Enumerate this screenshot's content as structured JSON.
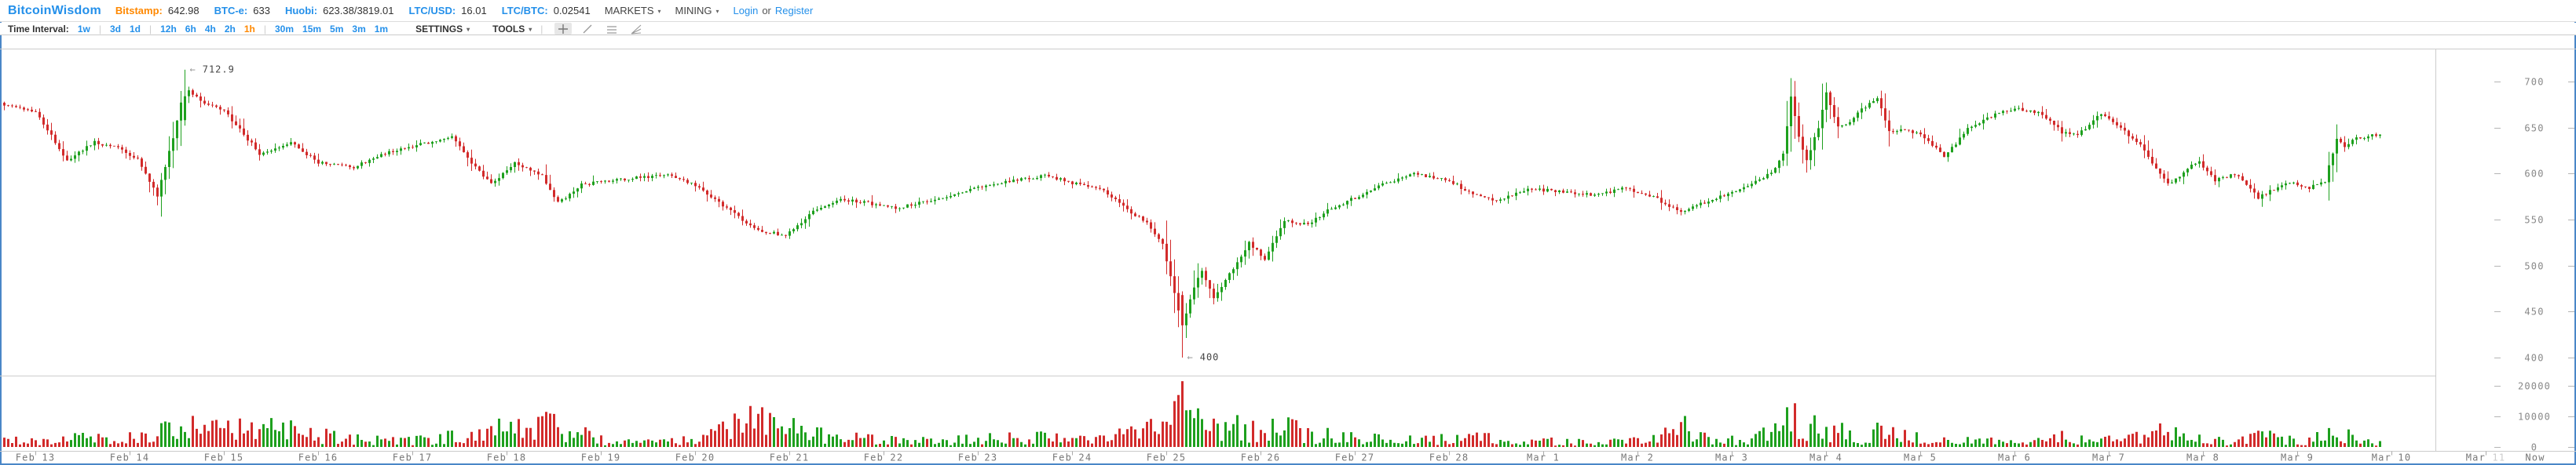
{
  "header": {
    "brand": "BitcoinWisdom",
    "tickers": [
      {
        "label": "Bitstamp:",
        "value": "642.98",
        "label_color": "#ff8800"
      },
      {
        "label": "BTC-e:",
        "value": "633",
        "label_color": "#2490ea"
      },
      {
        "label": "Huobi:",
        "value": "623.38/3819.01",
        "label_color": "#2490ea"
      },
      {
        "label": "LTC/USD:",
        "value": "16.01",
        "label_color": "#2490ea"
      },
      {
        "label": "LTC/BTC:",
        "value": "0.02541",
        "label_color": "#2490ea"
      }
    ],
    "menus": [
      {
        "label": "MARKETS"
      },
      {
        "label": "MINING"
      }
    ],
    "auth": {
      "login": "Login",
      "separator": "or",
      "register": "Register"
    }
  },
  "toolbar": {
    "time_interval_label": "Time Interval:",
    "groups": [
      [
        "1w"
      ],
      [
        "3d",
        "1d"
      ],
      [
        "12h",
        "6h",
        "4h",
        "2h",
        "1h"
      ],
      [
        "30m",
        "15m",
        "5m",
        "3m",
        "1m"
      ]
    ],
    "selected_interval": "1h",
    "settings_label": "SETTINGS",
    "tools_label": "TOOLS",
    "tool_icons": [
      "crosshair-icon",
      "trendline-icon",
      "horizontal-lines-icon",
      "fan-lines-icon"
    ],
    "separator_char": "|"
  },
  "icons": {
    "caret_down": "▾"
  },
  "theme": {
    "link_blue": "#2490ea",
    "highlight_orange": "#ff8800",
    "up_green": "#1ea01e",
    "down_red": "#d22b2b",
    "axis_gray": "#888",
    "border_blue": "#4a87c7"
  },
  "chart_data": {
    "type": "candlestick",
    "interval": "1h",
    "legend_position": "none",
    "grid": false,
    "price_axis": {
      "ticks": [
        700,
        650,
        600,
        550,
        500,
        450,
        400
      ],
      "range": [
        371,
        740
      ]
    },
    "volume_axis": {
      "ticks": [
        20000,
        10000,
        0
      ],
      "range": [
        0,
        22500
      ]
    },
    "x_axis": {
      "day_labels": [
        "Feb 13",
        "Feb 14",
        "Feb 15",
        "Feb 16",
        "Feb 17",
        "Feb 18",
        "Feb 19",
        "Feb 20",
        "Feb 21",
        "Feb 22",
        "Feb 23",
        "Feb 24",
        "Feb 25",
        "Feb 26",
        "Feb 27",
        "Feb 28",
        "Mar 1",
        "Mar 2",
        "Mar 3",
        "Mar 4",
        "Mar 5",
        "Mar 6",
        "Mar 7",
        "Mar 8",
        "Mar 9",
        "Mar 10"
      ],
      "future_label": {
        "month": "Mar",
        "day": "11"
      },
      "now_label": "Now"
    },
    "annotations": {
      "arrow": "←",
      "high": {
        "text": "712.9",
        "value": 712.9,
        "hour": 38
      },
      "low": {
        "text": "400",
        "value": 400,
        "hour": 292
      }
    },
    "colors": {
      "up": "#1ea01e",
      "down": "#d22b2b"
    },
    "hours": {
      "start": -8,
      "end": 597,
      "per_day": 24
    },
    "forced_candles": {
      "38": [
        658,
        684,
        712.9,
        652
      ],
      "292": [
        468,
        435,
        472,
        400
      ]
    },
    "forced_volumes": {
      "290": 15000,
      "291": 17000,
      "292": 21500,
      "293": 12000
    },
    "price_anchors": [
      [
        -8,
        675
      ],
      [
        0,
        668
      ],
      [
        8,
        614
      ],
      [
        15,
        634
      ],
      [
        21,
        628
      ],
      [
        26,
        615
      ],
      [
        31,
        576
      ],
      [
        35,
        640
      ],
      [
        38,
        695
      ],
      [
        42,
        678
      ],
      [
        48,
        668
      ],
      [
        57,
        622
      ],
      [
        65,
        634
      ],
      [
        72,
        612
      ],
      [
        81,
        607
      ],
      [
        91,
        625
      ],
      [
        100,
        634
      ],
      [
        106,
        639
      ],
      [
        112,
        606
      ],
      [
        116,
        589
      ],
      [
        122,
        611
      ],
      [
        129,
        597
      ],
      [
        133,
        568
      ],
      [
        139,
        588
      ],
      [
        149,
        594
      ],
      [
        161,
        598
      ],
      [
        168,
        588
      ],
      [
        175,
        565
      ],
      [
        183,
        540
      ],
      [
        191,
        532
      ],
      [
        198,
        558
      ],
      [
        205,
        572
      ],
      [
        212,
        568
      ],
      [
        219,
        562
      ],
      [
        229,
        572
      ],
      [
        239,
        585
      ],
      [
        249,
        592
      ],
      [
        257,
        598
      ],
      [
        264,
        590
      ],
      [
        271,
        585
      ],
      [
        278,
        560
      ],
      [
        283,
        548
      ],
      [
        287,
        522
      ],
      [
        290,
        470
      ],
      [
        292,
        432
      ],
      [
        294,
        465
      ],
      [
        297,
        495
      ],
      [
        300,
        463
      ],
      [
        304,
        490
      ],
      [
        309,
        525
      ],
      [
        313,
        508
      ],
      [
        318,
        548
      ],
      [
        324,
        545
      ],
      [
        329,
        560
      ],
      [
        335,
        572
      ],
      [
        343,
        588
      ],
      [
        351,
        600
      ],
      [
        359,
        594
      ],
      [
        365,
        580
      ],
      [
        372,
        570
      ],
      [
        380,
        584
      ],
      [
        389,
        580
      ],
      [
        397,
        576
      ],
      [
        405,
        584
      ],
      [
        413,
        572
      ],
      [
        419,
        558
      ],
      [
        427,
        572
      ],
      [
        435,
        585
      ],
      [
        442,
        600
      ],
      [
        445,
        622
      ],
      [
        447,
        683
      ],
      [
        449,
        640
      ],
      [
        451,
        615
      ],
      [
        454,
        650
      ],
      [
        456,
        688
      ],
      [
        459,
        650
      ],
      [
        462,
        655
      ],
      [
        465,
        670
      ],
      [
        469,
        682
      ],
      [
        472,
        645
      ],
      [
        476,
        648
      ],
      [
        481,
        640
      ],
      [
        486,
        618
      ],
      [
        492,
        648
      ],
      [
        499,
        665
      ],
      [
        505,
        670
      ],
      [
        511,
        665
      ],
      [
        516,
        645
      ],
      [
        520,
        642
      ],
      [
        526,
        665
      ],
      [
        531,
        650
      ],
      [
        536,
        630
      ],
      [
        540,
        605
      ],
      [
        543,
        588
      ],
      [
        549,
        608
      ],
      [
        551,
        612
      ],
      [
        555,
        592
      ],
      [
        560,
        600
      ],
      [
        566,
        574
      ],
      [
        571,
        585
      ],
      [
        574,
        590
      ],
      [
        579,
        584
      ],
      [
        583,
        592
      ],
      [
        586,
        638
      ],
      [
        588,
        630
      ],
      [
        591,
        638
      ],
      [
        594,
        640
      ],
      [
        597,
        643
      ]
    ],
    "volume_anchors": [
      [
        -8,
        2500
      ],
      [
        0,
        2000
      ],
      [
        8,
        3500
      ],
      [
        20,
        2200
      ],
      [
        31,
        4500
      ],
      [
        38,
        9000
      ],
      [
        48,
        5000
      ],
      [
        57,
        6500
      ],
      [
        70,
        4000
      ],
      [
        81,
        2500
      ],
      [
        95,
        2000
      ],
      [
        106,
        3200
      ],
      [
        116,
        5500
      ],
      [
        133,
        7000
      ],
      [
        145,
        1800
      ],
      [
        160,
        1500
      ],
      [
        170,
        3500
      ],
      [
        183,
        8000
      ],
      [
        191,
        6000
      ],
      [
        200,
        4000
      ],
      [
        215,
        2500
      ],
      [
        229,
        1800
      ],
      [
        240,
        2500
      ],
      [
        255,
        3000
      ],
      [
        264,
        2200
      ],
      [
        275,
        3500
      ],
      [
        283,
        5000
      ],
      [
        287,
        9000
      ],
      [
        290,
        15000
      ],
      [
        292,
        21500
      ],
      [
        294,
        12000
      ],
      [
        298,
        9000
      ],
      [
        304,
        7000
      ],
      [
        310,
        5000
      ],
      [
        318,
        6000
      ],
      [
        325,
        4000
      ],
      [
        335,
        3000
      ],
      [
        350,
        2200
      ],
      [
        365,
        3000
      ],
      [
        380,
        2000
      ],
      [
        395,
        1500
      ],
      [
        405,
        2000
      ],
      [
        413,
        3500
      ],
      [
        419,
        6500
      ],
      [
        425,
        3000
      ],
      [
        435,
        2200
      ],
      [
        445,
        7500
      ],
      [
        447,
        10000
      ],
      [
        451,
        6000
      ],
      [
        456,
        6500
      ],
      [
        465,
        3000
      ],
      [
        472,
        7000
      ],
      [
        480,
        2500
      ],
      [
        492,
        2000
      ],
      [
        505,
        1500
      ],
      [
        516,
        3500
      ],
      [
        526,
        2000
      ],
      [
        536,
        3000
      ],
      [
        543,
        5000
      ],
      [
        551,
        2500
      ],
      [
        560,
        1500
      ],
      [
        566,
        4000
      ],
      [
        578,
        1500
      ],
      [
        586,
        5000
      ],
      [
        591,
        2200
      ],
      [
        597,
        1500
      ]
    ]
  }
}
